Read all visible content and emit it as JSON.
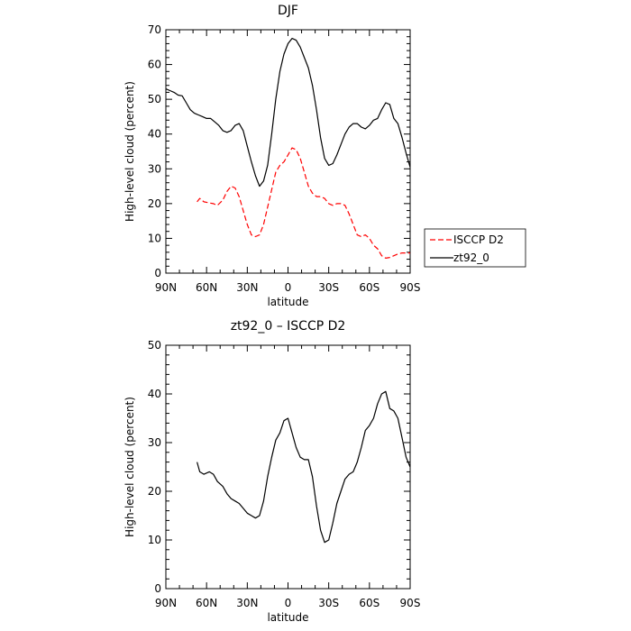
{
  "chart_data": [
    {
      "type": "line",
      "title": "DJF",
      "xlabel": "latitude",
      "ylabel": "High-level cloud (percent)",
      "xlim": [
        -90,
        90
      ],
      "ylim": [
        0,
        70
      ],
      "x_ticks": [
        -90,
        -60,
        -30,
        0,
        30,
        60,
        90
      ],
      "x_tick_labels": [
        "90N",
        "60N",
        "30N",
        "0",
        "30S",
        "60S",
        "90S"
      ],
      "y_ticks": [
        0,
        10,
        20,
        30,
        40,
        50,
        60,
        70
      ],
      "y_tick_labels": [
        "0",
        "10",
        "20",
        "30",
        "40",
        "50",
        "60",
        "70"
      ],
      "grid": false,
      "legend": "outside-right",
      "series": [
        {
          "name": "ISCCP D2",
          "color": "#ff0000",
          "style": "dashed",
          "x": [
            -67,
            -65,
            -62,
            -58,
            -55,
            -52,
            -48,
            -45,
            -42,
            -39,
            -36,
            -33,
            -30,
            -27,
            -24,
            -21,
            -18,
            -15,
            -12,
            -9,
            -6,
            -3,
            0,
            3,
            6,
            9,
            12,
            15,
            18,
            21,
            24,
            27,
            30,
            33,
            36,
            39,
            42,
            45,
            48,
            51,
            54,
            57,
            60,
            63,
            66,
            69,
            72,
            75,
            78,
            81,
            84,
            87,
            90
          ],
          "y": [
            20.5,
            21.5,
            20.5,
            20.2,
            20,
            19.5,
            21,
            23.5,
            25,
            24.5,
            22,
            18,
            14,
            11,
            10.5,
            11,
            14,
            19,
            24,
            29,
            31,
            32,
            34,
            36,
            35.5,
            33,
            29,
            25,
            23,
            22,
            22,
            21.5,
            20,
            19.5,
            20,
            20,
            19.5,
            17,
            14,
            11,
            10.5,
            11,
            10,
            8,
            7,
            5,
            4.3,
            4.5,
            5,
            5.5,
            5.8,
            5.8,
            5.8
          ]
        },
        {
          "name": "zt92_0",
          "color": "#000000",
          "style": "solid",
          "x": [
            -90,
            -87,
            -84,
            -81,
            -78,
            -75,
            -72,
            -69,
            -66,
            -63,
            -60,
            -57,
            -54,
            -51,
            -48,
            -45,
            -42,
            -39,
            -36,
            -33,
            -30,
            -27,
            -24,
            -21,
            -18,
            -15,
            -12,
            -9,
            -6,
            -3,
            0,
            3,
            6,
            9,
            12,
            15,
            18,
            21,
            24,
            27,
            30,
            33,
            36,
            39,
            42,
            45,
            48,
            51,
            54,
            57,
            60,
            63,
            66,
            69,
            72,
            75,
            78,
            81,
            84,
            87,
            90
          ],
          "y": [
            53,
            52.5,
            52,
            51.2,
            51,
            49,
            47,
            46,
            45.5,
            45,
            44.5,
            44.5,
            43.5,
            42.5,
            41,
            40.5,
            41,
            42.5,
            43,
            41,
            36.5,
            32,
            28,
            25,
            26.5,
            31,
            40,
            50,
            58,
            63,
            66,
            67.5,
            67,
            65,
            62,
            59,
            54,
            47,
            39,
            33,
            31,
            31.5,
            34,
            37,
            40,
            42,
            43,
            43,
            42,
            41.5,
            42.5,
            44,
            44.5,
            47,
            49,
            48.5,
            44.5,
            43,
            39,
            34.5,
            30.5
          ]
        }
      ]
    },
    {
      "type": "line",
      "title": "zt92_0 – ISCCP D2",
      "xlabel": "latitude",
      "ylabel": "High-level cloud (percent)",
      "xlim": [
        -90,
        90
      ],
      "ylim": [
        0,
        50
      ],
      "x_ticks": [
        -90,
        -60,
        -30,
        0,
        30,
        60,
        90
      ],
      "x_tick_labels": [
        "90N",
        "60N",
        "30N",
        "0",
        "30S",
        "60S",
        "90S"
      ],
      "y_ticks": [
        0,
        10,
        20,
        30,
        40,
        50
      ],
      "y_tick_labels": [
        "0",
        "10",
        "20",
        "30",
        "40",
        "50"
      ],
      "grid": false,
      "legend": "none",
      "series": [
        {
          "color": "#000000",
          "style": "solid",
          "x": [
            -67,
            -65,
            -62,
            -58,
            -55,
            -52,
            -48,
            -45,
            -42,
            -39,
            -36,
            -33,
            -30,
            -27,
            -24,
            -21,
            -18,
            -15,
            -12,
            -9,
            -6,
            -3,
            0,
            3,
            6,
            9,
            12,
            15,
            18,
            21,
            24,
            27,
            30,
            33,
            36,
            39,
            42,
            45,
            48,
            51,
            54,
            57,
            60,
            63,
            66,
            69,
            72,
            75,
            78,
            81,
            84,
            87,
            90
          ],
          "y": [
            26,
            24,
            23.5,
            24,
            23.5,
            22,
            21,
            19.5,
            18.5,
            18,
            17.5,
            16.5,
            15.5,
            15,
            14.5,
            15,
            18,
            23,
            27,
            30.5,
            32,
            34.5,
            35,
            32,
            29,
            27,
            26.5,
            26.5,
            23,
            17,
            12,
            9.5,
            10,
            13.5,
            17.5,
            20,
            22.5,
            23.5,
            24,
            26,
            29,
            32.5,
            33.5,
            35,
            38,
            40,
            40.5,
            37,
            36.5,
            35,
            31,
            27,
            25
          ]
        }
      ]
    }
  ]
}
